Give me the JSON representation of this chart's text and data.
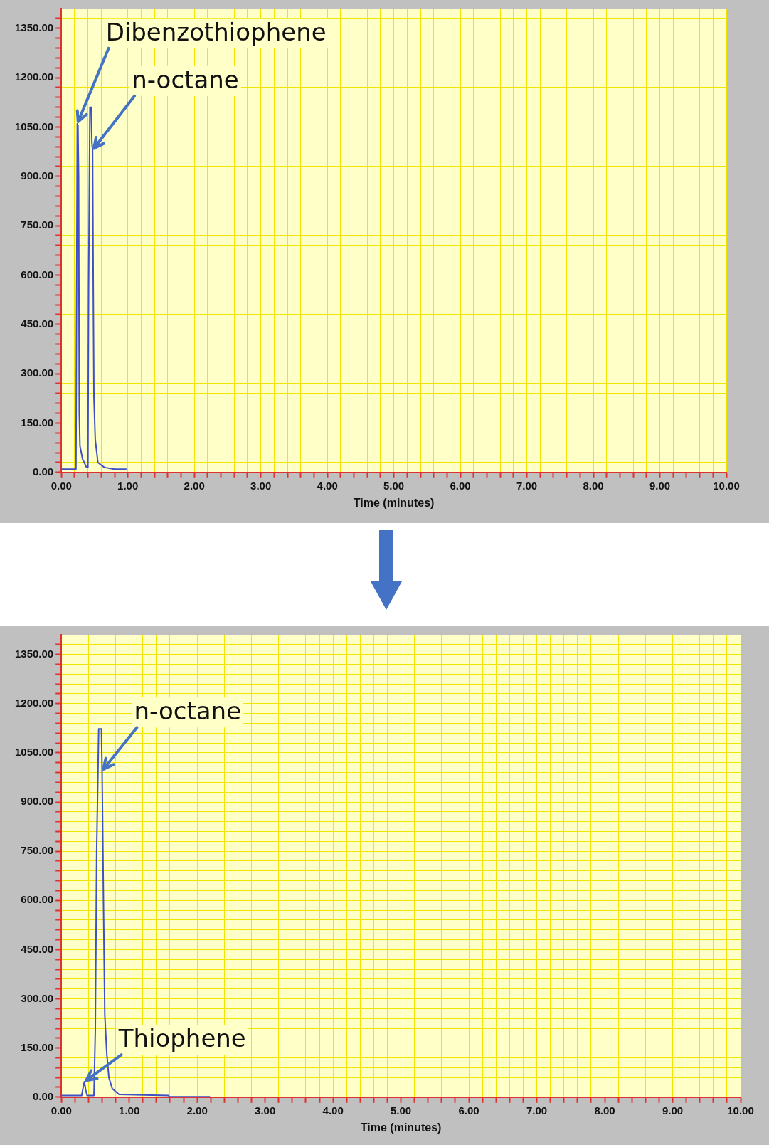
{
  "chart_data": [
    {
      "type": "line",
      "xlabel": "Time (minutes)",
      "xlim": [
        0,
        10
      ],
      "ylim": [
        0,
        1410
      ],
      "grid": true,
      "xticks": [
        {
          "value": 0,
          "label": "0.00"
        },
        {
          "value": 0.2,
          "label": null
        },
        {
          "value": 0.4,
          "label": null
        },
        {
          "value": 0.6,
          "label": null
        },
        {
          "value": 0.8,
          "label": null
        },
        {
          "value": 1,
          "label": "1.00"
        },
        {
          "value": 1.2,
          "label": null
        },
        {
          "value": 1.4,
          "label": null
        },
        {
          "value": 1.6,
          "label": null
        },
        {
          "value": 1.8,
          "label": null
        },
        {
          "value": 2,
          "label": "2.00"
        },
        {
          "value": 2.2,
          "label": null
        },
        {
          "value": 2.4,
          "label": null
        },
        {
          "value": 2.6,
          "label": null
        },
        {
          "value": 2.8,
          "label": null
        },
        {
          "value": 3,
          "label": "3.00"
        },
        {
          "value": 3.2,
          "label": null
        },
        {
          "value": 3.4,
          "label": null
        },
        {
          "value": 3.6,
          "label": null
        },
        {
          "value": 3.8,
          "label": null
        },
        {
          "value": 4,
          "label": "4.00"
        },
        {
          "value": 4.2,
          "label": null
        },
        {
          "value": 4.4,
          "label": null
        },
        {
          "value": 4.6,
          "label": null
        },
        {
          "value": 4.8,
          "label": null
        },
        {
          "value": 5,
          "label": "5.00"
        },
        {
          "value": 5.2,
          "label": null
        },
        {
          "value": 5.4,
          "label": null
        },
        {
          "value": 5.6,
          "label": null
        },
        {
          "value": 5.8,
          "label": null
        },
        {
          "value": 6,
          "label": "6.00"
        },
        {
          "value": 6.2,
          "label": null
        },
        {
          "value": 6.4,
          "label": null
        },
        {
          "value": 6.6,
          "label": null
        },
        {
          "value": 6.8,
          "label": null
        },
        {
          "value": 7,
          "label": "7.00"
        },
        {
          "value": 7.2,
          "label": null
        },
        {
          "value": 7.4,
          "label": null
        },
        {
          "value": 7.6,
          "label": null
        },
        {
          "value": 7.8,
          "label": null
        },
        {
          "value": 8,
          "label": "8.00"
        },
        {
          "value": 8.2,
          "label": null
        },
        {
          "value": 8.4,
          "label": null
        },
        {
          "value": 8.6,
          "label": null
        },
        {
          "value": 8.8,
          "label": null
        },
        {
          "value": 9,
          "label": "9.00"
        },
        {
          "value": 9.2,
          "label": null
        },
        {
          "value": 9.4,
          "label": null
        },
        {
          "value": 9.6,
          "label": null
        },
        {
          "value": 9.8,
          "label": null
        },
        {
          "value": 10,
          "label": "10.00"
        }
      ],
      "yticks": [
        {
          "value": 0,
          "label": "0.00"
        },
        {
          "value": 30,
          "label": null
        },
        {
          "value": 60,
          "label": null
        },
        {
          "value": 90,
          "label": null
        },
        {
          "value": 120,
          "label": null
        },
        {
          "value": 150,
          "label": "150.00"
        },
        {
          "value": 180,
          "label": null
        },
        {
          "value": 210,
          "label": null
        },
        {
          "value": 240,
          "label": null
        },
        {
          "value": 270,
          "label": null
        },
        {
          "value": 300,
          "label": "300.00"
        },
        {
          "value": 330,
          "label": null
        },
        {
          "value": 360,
          "label": null
        },
        {
          "value": 390,
          "label": null
        },
        {
          "value": 420,
          "label": null
        },
        {
          "value": 450,
          "label": "450.00"
        },
        {
          "value": 480,
          "label": null
        },
        {
          "value": 510,
          "label": null
        },
        {
          "value": 540,
          "label": null
        },
        {
          "value": 570,
          "label": null
        },
        {
          "value": 600,
          "label": "600.00"
        },
        {
          "value": 630,
          "label": null
        },
        {
          "value": 660,
          "label": null
        },
        {
          "value": 690,
          "label": null
        },
        {
          "value": 720,
          "label": null
        },
        {
          "value": 750,
          "label": "750.00"
        },
        {
          "value": 780,
          "label": null
        },
        {
          "value": 810,
          "label": null
        },
        {
          "value": 840,
          "label": null
        },
        {
          "value": 870,
          "label": null
        },
        {
          "value": 900,
          "label": "900.00"
        },
        {
          "value": 930,
          "label": null
        },
        {
          "value": 960,
          "label": null
        },
        {
          "value": 990,
          "label": null
        },
        {
          "value": 1020,
          "label": null
        },
        {
          "value": 1050,
          "label": "1050.00"
        },
        {
          "value": 1080,
          "label": null
        },
        {
          "value": 1110,
          "label": null
        },
        {
          "value": 1140,
          "label": null
        },
        {
          "value": 1170,
          "label": null
        },
        {
          "value": 1200,
          "label": "1200.00"
        },
        {
          "value": 1230,
          "label": null
        },
        {
          "value": 1260,
          "label": null
        },
        {
          "value": 1290,
          "label": null
        },
        {
          "value": 1320,
          "label": null
        },
        {
          "value": 1350,
          "label": "1350.00"
        },
        {
          "value": 1380,
          "label": null
        }
      ],
      "series": [
        {
          "color": "#3f4fc8",
          "x": [
            0,
            0.22,
            0.23,
            0.24,
            0.25,
            0.26,
            0.27,
            0.28,
            0.32,
            0.38,
            0.4,
            0.41,
            0.43,
            0.45,
            0.46,
            0.47,
            0.48,
            0.49,
            0.51,
            0.55,
            0.65,
            0.8,
            0.98
          ],
          "values": [
            10,
            10,
            540,
            1060,
            1055,
            900,
            180,
            80,
            40,
            15,
            15,
            560,
            1110,
            1110,
            1000,
            980,
            570,
            230,
            100,
            30,
            15,
            10,
            10
          ]
        }
      ],
      "annotations": [
        {
          "text": "Dibenzothiophene",
          "x": 0.24,
          "y": 1060
        },
        {
          "text": "n-octane",
          "x": 0.47,
          "y": 980
        }
      ]
    },
    {
      "type": "line",
      "xlabel": "Time (minutes)",
      "xlim": [
        0,
        10
      ],
      "ylim": [
        0,
        1410
      ],
      "grid": true,
      "xticks": [
        {
          "value": 0,
          "label": "0.00"
        },
        {
          "value": 0.2,
          "label": null
        },
        {
          "value": 0.4,
          "label": null
        },
        {
          "value": 0.6,
          "label": null
        },
        {
          "value": 0.8,
          "label": null
        },
        {
          "value": 1,
          "label": "1.00"
        },
        {
          "value": 1.2,
          "label": null
        },
        {
          "value": 1.4,
          "label": null
        },
        {
          "value": 1.6,
          "label": null
        },
        {
          "value": 1.8,
          "label": null
        },
        {
          "value": 2,
          "label": "2.00"
        },
        {
          "value": 2.2,
          "label": null
        },
        {
          "value": 2.4,
          "label": null
        },
        {
          "value": 2.6,
          "label": null
        },
        {
          "value": 2.8,
          "label": null
        },
        {
          "value": 3,
          "label": "3.00"
        },
        {
          "value": 3.2,
          "label": null
        },
        {
          "value": 3.4,
          "label": null
        },
        {
          "value": 3.6,
          "label": null
        },
        {
          "value": 3.8,
          "label": null
        },
        {
          "value": 4,
          "label": "4.00"
        },
        {
          "value": 4.2,
          "label": null
        },
        {
          "value": 4.4,
          "label": null
        },
        {
          "value": 4.6,
          "label": null
        },
        {
          "value": 4.8,
          "label": null
        },
        {
          "value": 5,
          "label": "5.00"
        },
        {
          "value": 5.2,
          "label": null
        },
        {
          "value": 5.4,
          "label": null
        },
        {
          "value": 5.6,
          "label": null
        },
        {
          "value": 5.8,
          "label": null
        },
        {
          "value": 6,
          "label": "6.00"
        },
        {
          "value": 6.2,
          "label": null
        },
        {
          "value": 6.4,
          "label": null
        },
        {
          "value": 6.6,
          "label": null
        },
        {
          "value": 6.8,
          "label": null
        },
        {
          "value": 7,
          "label": "7.00"
        },
        {
          "value": 7.2,
          "label": null
        },
        {
          "value": 7.4,
          "label": null
        },
        {
          "value": 7.6,
          "label": null
        },
        {
          "value": 7.8,
          "label": null
        },
        {
          "value": 8,
          "label": "8.00"
        },
        {
          "value": 8.2,
          "label": null
        },
        {
          "value": 8.4,
          "label": null
        },
        {
          "value": 8.6,
          "label": null
        },
        {
          "value": 8.8,
          "label": null
        },
        {
          "value": 9,
          "label": "9.00"
        },
        {
          "value": 9.2,
          "label": null
        },
        {
          "value": 9.4,
          "label": null
        },
        {
          "value": 9.6,
          "label": null
        },
        {
          "value": 9.8,
          "label": null
        },
        {
          "value": 10,
          "label": "10.00"
        }
      ],
      "yticks": [
        {
          "value": 0,
          "label": "0.00"
        },
        {
          "value": 30,
          "label": null
        },
        {
          "value": 60,
          "label": null
        },
        {
          "value": 90,
          "label": null
        },
        {
          "value": 120,
          "label": null
        },
        {
          "value": 150,
          "label": "150.00"
        },
        {
          "value": 180,
          "label": null
        },
        {
          "value": 210,
          "label": null
        },
        {
          "value": 240,
          "label": null
        },
        {
          "value": 270,
          "label": null
        },
        {
          "value": 300,
          "label": "300.00"
        },
        {
          "value": 330,
          "label": null
        },
        {
          "value": 360,
          "label": null
        },
        {
          "value": 390,
          "label": null
        },
        {
          "value": 420,
          "label": null
        },
        {
          "value": 450,
          "label": "450.00"
        },
        {
          "value": 480,
          "label": null
        },
        {
          "value": 510,
          "label": null
        },
        {
          "value": 540,
          "label": null
        },
        {
          "value": 570,
          "label": null
        },
        {
          "value": 600,
          "label": "600.00"
        },
        {
          "value": 630,
          "label": null
        },
        {
          "value": 660,
          "label": null
        },
        {
          "value": 690,
          "label": null
        },
        {
          "value": 720,
          "label": null
        },
        {
          "value": 750,
          "label": "750.00"
        },
        {
          "value": 780,
          "label": null
        },
        {
          "value": 810,
          "label": null
        },
        {
          "value": 840,
          "label": null
        },
        {
          "value": 870,
          "label": null
        },
        {
          "value": 900,
          "label": "900.00"
        },
        {
          "value": 930,
          "label": null
        },
        {
          "value": 960,
          "label": null
        },
        {
          "value": 990,
          "label": null
        },
        {
          "value": 1020,
          "label": null
        },
        {
          "value": 1050,
          "label": "1050.00"
        },
        {
          "value": 1080,
          "label": null
        },
        {
          "value": 1110,
          "label": null
        },
        {
          "value": 1140,
          "label": null
        },
        {
          "value": 1170,
          "label": null
        },
        {
          "value": 1200,
          "label": "1200.00"
        },
        {
          "value": 1230,
          "label": null
        },
        {
          "value": 1260,
          "label": null
        },
        {
          "value": 1290,
          "label": null
        },
        {
          "value": 1320,
          "label": null
        },
        {
          "value": 1350,
          "label": "1350.00"
        },
        {
          "value": 1380,
          "label": null
        }
      ],
      "series": [
        {
          "color": "#3f4fc8",
          "x": [
            0,
            0.3,
            0.33,
            0.34,
            0.36,
            0.38,
            0.48,
            0.5,
            0.52,
            0.55,
            0.59,
            0.6,
            0.62,
            0.64,
            0.67,
            0.7,
            0.75,
            0.85,
            1.58,
            1.59,
            2.19
          ],
          "values": [
            5,
            5,
            40,
            47,
            20,
            5,
            5,
            200,
            750,
            1123,
            1123,
            995,
            600,
            250,
            130,
            60,
            26,
            8,
            5,
            1,
            1
          ]
        }
      ],
      "annotations": [
        {
          "text": "n-octane",
          "x": 0.6,
          "y": 995
        },
        {
          "text": "Thiophene",
          "x": 0.34,
          "y": 47
        }
      ]
    }
  ]
}
